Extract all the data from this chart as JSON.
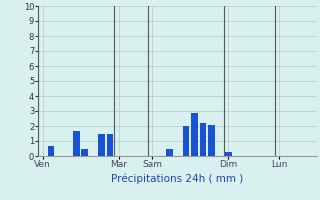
{
  "title": "Précipitations 24h ( mm )",
  "background_color": "#d8f0ee",
  "grid_color": "#b8d0ce",
  "bar_color": "#1a52d4",
  "ylim": [
    0,
    10
  ],
  "yticks": [
    0,
    1,
    2,
    3,
    4,
    5,
    6,
    7,
    8,
    9,
    10
  ],
  "day_labels": [
    "Ven",
    "Mar",
    "Sam",
    "Dim",
    "Lun"
  ],
  "day_positions": [
    0,
    9,
    13,
    22,
    28
  ],
  "n_bars": 33,
  "bar_values": [
    0,
    0.7,
    0,
    0,
    1.7,
    0.5,
    0,
    1.5,
    1.5,
    0,
    0,
    0,
    0,
    0,
    0,
    0.5,
    0,
    2.0,
    2.9,
    2.2,
    2.1,
    0,
    0.3,
    0,
    0,
    0,
    0,
    0,
    0,
    0,
    0,
    0,
    0
  ],
  "separator_color": "#555566",
  "xlabel_color": "#2244bb",
  "ylabel_color": "#333333",
  "tick_label_color": "#444466",
  "fig_width": 3.2,
  "fig_height": 2.0,
  "dpi": 100
}
